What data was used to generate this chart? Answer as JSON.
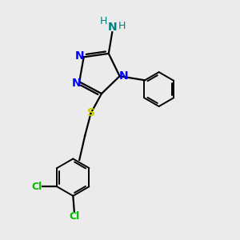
{
  "bg_color": "#ebebeb",
  "bond_color": "#000000",
  "N_color": "#0000ff",
  "S_color": "#cccc00",
  "Cl_color": "#00bb00",
  "NH2_N_color": "#008080",
  "NH2_H_color": "#008080",
  "figsize": [
    3.0,
    3.0
  ],
  "dpi": 100,
  "xlim": [
    0,
    10
  ],
  "ylim": [
    0,
    10
  ]
}
